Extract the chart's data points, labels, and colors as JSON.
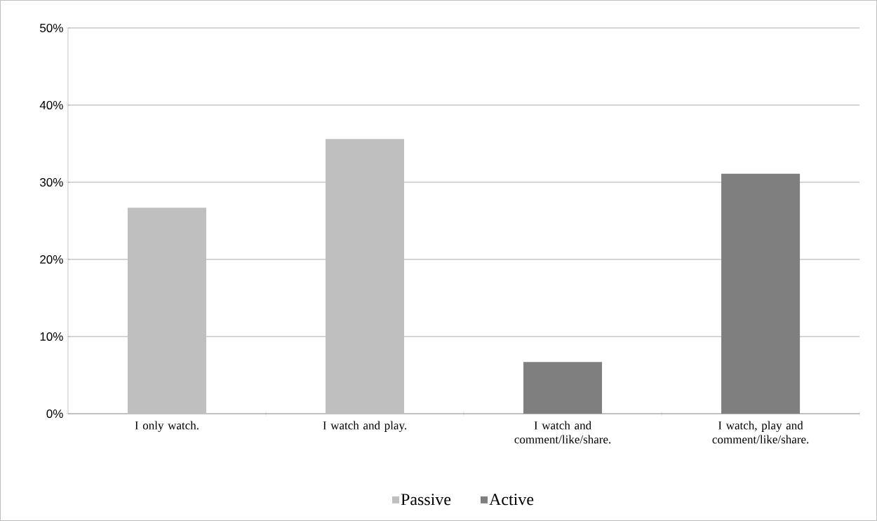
{
  "chart_data": {
    "type": "bar",
    "categories": [
      "I only watch.",
      "I watch and play.",
      "I watch and comment/like/share.",
      "I watch, play and comment/like/share."
    ],
    "series": [
      {
        "name": "Passive",
        "color": "#bfbfbf",
        "values": [
          26.7,
          35.6,
          null,
          null
        ]
      },
      {
        "name": "Active",
        "color": "#7f7f7f",
        "values": [
          null,
          null,
          6.7,
          31.1
        ]
      }
    ],
    "ylim": [
      0,
      50
    ],
    "yticks": [
      {
        "value": 0,
        "label": "0%"
      },
      {
        "value": 10,
        "label": "10%"
      },
      {
        "value": 20,
        "label": "20%"
      },
      {
        "value": 30,
        "label": "30%"
      },
      {
        "value": 40,
        "label": "40%"
      },
      {
        "value": 50,
        "label": "50%"
      }
    ],
    "grid": "y",
    "legend": "bottom"
  }
}
